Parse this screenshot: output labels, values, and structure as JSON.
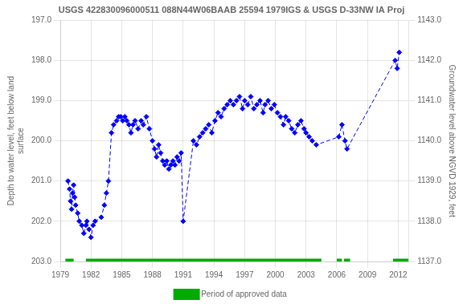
{
  "chart_data": {
    "type": "line",
    "title": "USGS 422830096000511 088N44W06BAAB 25594 1979IGS & USGS D-33NW IA Proj",
    "ylabel": "Depth to water level, feet below land\nsurface",
    "y2label": "Groundwater level above NGVD 1929, feet",
    "x": [
      1979.75,
      1979.9,
      1980.0,
      1980.1,
      1980.2,
      1980.3,
      1980.4,
      1980.5,
      1980.7,
      1980.85,
      1981.1,
      1981.3,
      1981.5,
      1981.6,
      1981.8,
      1982.0,
      1982.2,
      1982.4,
      1983.0,
      1983.3,
      1983.5,
      1983.7,
      1984.0,
      1984.2,
      1984.5,
      1984.7,
      1984.9,
      1985.1,
      1985.3,
      1985.5,
      1985.7,
      1985.9,
      1986.1,
      1986.3,
      1986.6,
      1986.9,
      1987.1,
      1987.4,
      1987.7,
      1988.0,
      1988.2,
      1988.4,
      1988.6,
      1988.8,
      1989.0,
      1989.2,
      1989.4,
      1989.6,
      1989.8,
      1990.0,
      1990.2,
      1990.4,
      1990.6,
      1990.8,
      1991.0,
      1992.0,
      1992.3,
      1992.6,
      1992.9,
      1993.2,
      1993.5,
      1993.8,
      1994.1,
      1994.4,
      1994.7,
      1995.0,
      1995.3,
      1995.6,
      1995.9,
      1996.2,
      1996.5,
      1996.8,
      1997.0,
      1997.3,
      1997.6,
      1997.9,
      1998.2,
      1998.5,
      1998.8,
      1999.0,
      1999.3,
      1999.6,
      1999.9,
      2000.2,
      2000.5,
      2000.8,
      2001.0,
      2001.3,
      2001.6,
      2001.9,
      2002.2,
      2002.5,
      2002.8,
      2003.0,
      2003.3,
      2003.6,
      2004.0,
      2006.2,
      2006.5,
      2006.8,
      2007.0,
      2011.7,
      2011.9,
      2012.1
    ],
    "series": [
      {
        "values": [
          201.0,
          201.2,
          201.5,
          201.7,
          201.3,
          201.1,
          201.4,
          201.6,
          201.8,
          202.0,
          202.1,
          202.3,
          202.1,
          202.0,
          202.2,
          202.4,
          202.1,
          202.0,
          201.9,
          201.6,
          201.3,
          201.0,
          199.8,
          199.6,
          199.5,
          199.4,
          199.4,
          199.5,
          199.4,
          199.5,
          199.6,
          199.8,
          199.6,
          199.5,
          199.7,
          199.5,
          199.6,
          199.4,
          199.7,
          200.0,
          200.2,
          200.4,
          200.1,
          200.3,
          200.5,
          200.6,
          200.5,
          200.7,
          200.6,
          200.5,
          200.6,
          200.4,
          200.5,
          200.3,
          202.0,
          200.0,
          200.1,
          199.9,
          199.8,
          199.7,
          199.6,
          199.8,
          199.5,
          199.3,
          199.4,
          199.2,
          199.1,
          199.0,
          199.1,
          199.0,
          198.9,
          199.2,
          199.0,
          199.1,
          198.9,
          199.2,
          199.1,
          199.0,
          199.3,
          199.1,
          199.0,
          199.2,
          199.1,
          199.3,
          199.4,
          199.6,
          199.4,
          199.5,
          199.7,
          199.8,
          199.6,
          199.5,
          199.7,
          199.8,
          199.9,
          200.0,
          200.1,
          199.9,
          199.6,
          200.0,
          200.2,
          198.0,
          198.2,
          197.8
        ],
        "color": "#0000FF",
        "marker": "diamond",
        "line_style": "dashed"
      },
      {
        "name": "Period of approved data",
        "type": "segments",
        "color": "#00aa00",
        "segments": [
          [
            1979.5,
            1980.3
          ],
          [
            1981.5,
            2004.5
          ],
          [
            2006.0,
            2006.5
          ],
          [
            2006.7,
            2007.3
          ],
          [
            2011.5,
            2013.0
          ]
        ]
      }
    ],
    "xlim": [
      1979,
      2013
    ],
    "xticks": [
      1979,
      1982,
      1985,
      1988,
      1991,
      1994,
      1997,
      2000,
      2003,
      2006,
      2009,
      2012
    ],
    "ylim": [
      203.0,
      197.0
    ],
    "yticks": [
      {
        "value": 197.0,
        "label": "197.0"
      },
      {
        "value": 198.0,
        "label": "198.0"
      },
      {
        "value": 199.0,
        "label": "199.0"
      },
      {
        "value": 200.0,
        "label": "200.0"
      },
      {
        "value": 201.0,
        "label": "201.0"
      },
      {
        "value": 202.0,
        "label": "202.0"
      },
      {
        "value": 203.0,
        "label": "203.0"
      }
    ],
    "y2lim": [
      1137.0,
      1143.0
    ],
    "y2ticks": [
      {
        "value": 1143.0,
        "label": "1143.0"
      },
      {
        "value": 1142.0,
        "label": "1142.0"
      },
      {
        "value": 1141.0,
        "label": "1141.0"
      },
      {
        "value": 1140.0,
        "label": "1140.0"
      },
      {
        "value": 1139.0,
        "label": "1139.0"
      },
      {
        "value": 1138.0,
        "label": "1138.0"
      },
      {
        "value": 1137.0,
        "label": "1137.0"
      }
    ],
    "grid": true,
    "legend": "bottom"
  }
}
